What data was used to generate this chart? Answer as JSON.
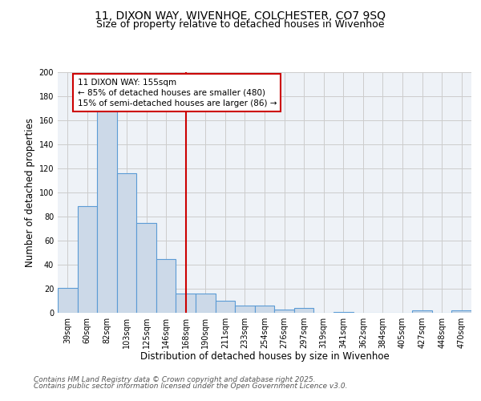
{
  "title_line1": "11, DIXON WAY, WIVENHOE, COLCHESTER, CO7 9SQ",
  "title_line2": "Size of property relative to detached houses in Wivenhoe",
  "xlabel": "Distribution of detached houses by size in Wivenhoe",
  "ylabel": "Number of detached properties",
  "categories": [
    "39sqm",
    "60sqm",
    "82sqm",
    "103sqm",
    "125sqm",
    "146sqm",
    "168sqm",
    "190sqm",
    "211sqm",
    "233sqm",
    "254sqm",
    "276sqm",
    "297sqm",
    "319sqm",
    "341sqm",
    "362sqm",
    "384sqm",
    "405sqm",
    "427sqm",
    "448sqm",
    "470sqm"
  ],
  "values": [
    21,
    89,
    168,
    116,
    75,
    45,
    16,
    16,
    10,
    6,
    6,
    3,
    4,
    0,
    1,
    0,
    0,
    0,
    2,
    0,
    2
  ],
  "bar_color": "#ccd9e8",
  "bar_edge_color": "#5b9bd5",
  "red_line_x": 6.0,
  "annotation_text": "11 DIXON WAY: 155sqm\n← 85% of detached houses are smaller (480)\n15% of semi-detached houses are larger (86) →",
  "annotation_box_color": "#ffffff",
  "annotation_box_edge": "#cc0000",
  "red_line_color": "#cc0000",
  "ylim": [
    0,
    200
  ],
  "yticks": [
    0,
    20,
    40,
    60,
    80,
    100,
    120,
    140,
    160,
    180,
    200
  ],
  "grid_color": "#cccccc",
  "bg_color": "#eef2f7",
  "footer_line1": "Contains HM Land Registry data © Crown copyright and database right 2025.",
  "footer_line2": "Contains public sector information licensed under the Open Government Licence v3.0.",
  "title_fontsize": 10,
  "subtitle_fontsize": 9,
  "tick_fontsize": 7,
  "xlabel_fontsize": 8.5,
  "ylabel_fontsize": 8.5,
  "footer_fontsize": 6.5,
  "annot_fontsize": 7.5
}
